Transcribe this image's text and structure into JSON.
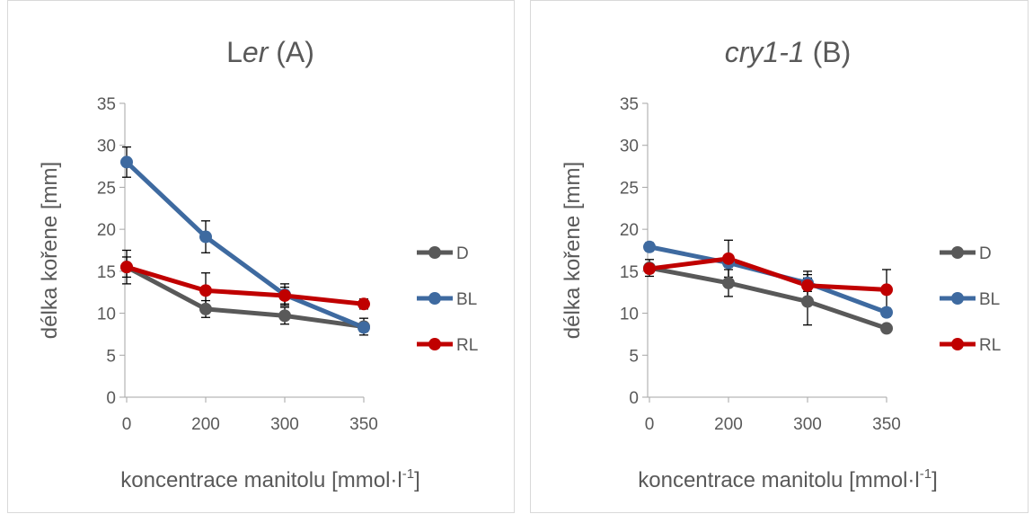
{
  "colors": {
    "D": "#595959",
    "BL": "#3e6aa0",
    "RL": "#c00000",
    "axis": "#a6a6a6",
    "text": "#595959"
  },
  "chart_data": [
    {
      "type": "line",
      "title_prefix": "L",
      "title_italic": "er",
      "title_suffix": " (A)",
      "xlabel": "koncentrace manitolu [mmol·l",
      "xlabel_sup": "-1",
      "xlabel_end": "]",
      "ylabel": "délka kořene [mm]",
      "x": [
        "0",
        "200",
        "300",
        "350"
      ],
      "ylim": [
        0,
        35
      ],
      "yticks": [
        "0",
        "5",
        "10",
        "15",
        "20",
        "25",
        "30",
        "35"
      ],
      "legend_position": "right",
      "series": [
        {
          "name": "D",
          "values": [
            15.5,
            10.5,
            9.7,
            8.4
          ],
          "errors": [
            2.0,
            1.0,
            1.0,
            1.0
          ]
        },
        {
          "name": "BL",
          "values": [
            28.0,
            19.1,
            12.2,
            8.3
          ],
          "errors": [
            1.8,
            1.9,
            1.3,
            0.5
          ]
        },
        {
          "name": "RL",
          "values": [
            15.5,
            12.7,
            12.1,
            11.1
          ],
          "errors": [
            1.2,
            2.1,
            1.0,
            0.6
          ]
        }
      ]
    },
    {
      "type": "line",
      "title_prefix": "",
      "title_italic": "cry1-1",
      "title_suffix": " (B)",
      "xlabel": "koncentrace manitolu [mmol·l",
      "xlabel_sup": "-1",
      "xlabel_end": "]",
      "ylabel": "délka kořene [mm]",
      "x": [
        "0",
        "200",
        "300",
        "350"
      ],
      "ylim": [
        0,
        35
      ],
      "yticks": [
        "0",
        "5",
        "10",
        "15",
        "20",
        "25",
        "30",
        "35"
      ],
      "legend_position": "right",
      "series": [
        {
          "name": "D",
          "values": [
            15.4,
            13.6,
            11.4,
            8.2
          ],
          "errors": [
            1.0,
            1.6,
            2.8,
            0.4
          ]
        },
        {
          "name": "BL",
          "values": [
            17.9,
            16.0,
            13.6,
            10.1
          ],
          "errors": [
            0.5,
            0.5,
            1.0,
            0.5
          ]
        },
        {
          "name": "RL",
          "values": [
            15.3,
            16.5,
            13.3,
            12.8
          ],
          "errors": [
            0.5,
            2.2,
            1.7,
            2.4
          ]
        }
      ]
    }
  ]
}
